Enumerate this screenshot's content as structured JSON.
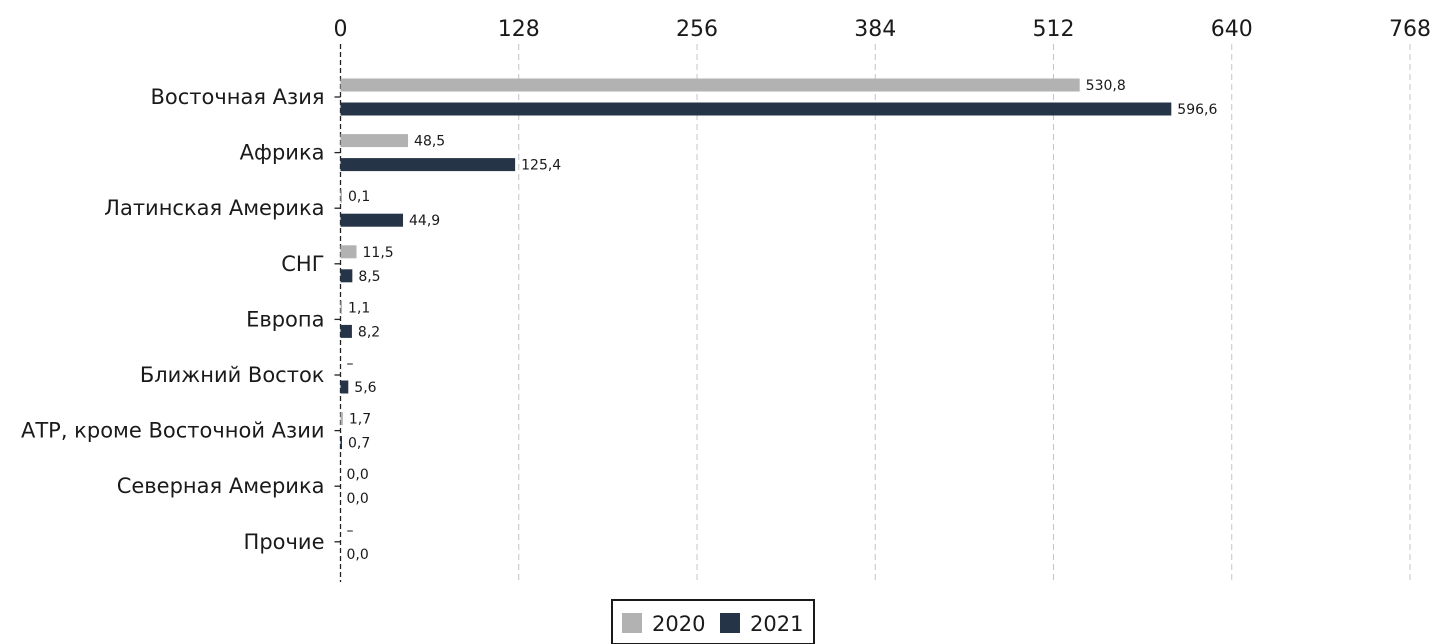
{
  "chart_data": {
    "type": "bar",
    "orientation": "horizontal",
    "categories": [
      "Восточная Азия",
      "Африка",
      "Латинская Америка",
      "СНГ",
      "Европа",
      "Ближний Восток",
      "АТР, кроме Восточной Азии",
      "Северная Америка",
      "Прочие"
    ],
    "series": [
      {
        "name": "2020",
        "color": "#b2b2b2",
        "values": [
          530.8,
          48.5,
          0.1,
          11.5,
          1.1,
          null,
          1.7,
          0.0,
          null
        ],
        "labels": [
          "530,8",
          "48,5",
          "0,1",
          "11,5",
          "1,1",
          "–",
          "1,7",
          "0,0",
          "–"
        ]
      },
      {
        "name": "2021",
        "color": "#253447",
        "values": [
          596.6,
          125.4,
          44.9,
          8.5,
          8.2,
          5.6,
          0.7,
          0.0,
          0.0
        ],
        "labels": [
          "596,6",
          "125,4",
          "44,9",
          "8,5",
          "8,2",
          "5,6",
          "0,7",
          "0,0",
          "0,0"
        ]
      }
    ],
    "xlim": [
      0,
      768
    ],
    "xticks": [
      0,
      128,
      256,
      384,
      512,
      640,
      768
    ],
    "tick_labels": [
      "0",
      "128",
      "256",
      "384",
      "512",
      "640",
      "768"
    ],
    "x_axis_position": "top",
    "grid": "vertical dashed",
    "legend_position": "bottom-center"
  }
}
